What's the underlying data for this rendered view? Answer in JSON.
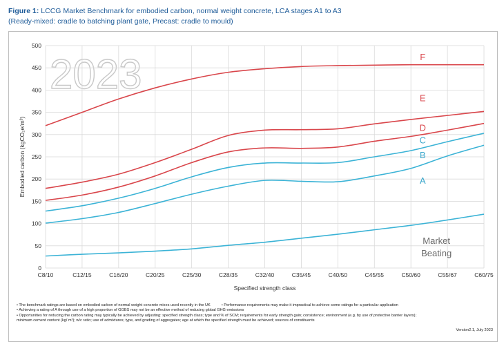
{
  "header": {
    "figure_label": "Figure 1:",
    "title": "LCCG Market Benchmark for embodied carbon, normal weight concrete, LCA stages A1 to A3",
    "subtitle": "(Ready-mixed: cradle to batching plant gate, Precast: cradle to mould)"
  },
  "chart_data": {
    "type": "line",
    "watermark": "2023",
    "xlabel": "Specified strength class",
    "ylabel": "Embodied carbon (kgCO₂e/m³)",
    "ylim": [
      0,
      500
    ],
    "yticks": [
      "0",
      "50",
      "100",
      "150",
      "200",
      "250",
      "300",
      "350",
      "400",
      "450",
      "500"
    ],
    "categories": [
      "C8/10",
      "C12/15",
      "C16/20",
      "C20/25",
      "C25/30",
      "C28/35",
      "C32/40",
      "C35/45",
      "C40/50",
      "C45/55",
      "C50/60",
      "C55/67",
      "C60/75"
    ],
    "grid": true,
    "colors": {
      "rating": "#d9464b",
      "lower": "#3bb3d6",
      "label_rating": "#d9464b",
      "label_lower": "#3aa7cc",
      "market_label": "#6a6a6a"
    },
    "series": [
      {
        "name": "F",
        "color": "#d9464b",
        "values": [
          320,
          350,
          380,
          405,
          425,
          440,
          448,
          453,
          455,
          456,
          457,
          457,
          457
        ]
      },
      {
        "name": "E",
        "color": "#d9464b",
        "values": [
          179,
          193,
          211,
          237,
          267,
          298,
          310,
          311,
          313,
          324,
          334,
          343,
          352
        ]
      },
      {
        "name": "D",
        "color": "#d9464b",
        "values": [
          152,
          164,
          182,
          207,
          237,
          261,
          270,
          269,
          272,
          285,
          296,
          310,
          325
        ]
      },
      {
        "name": "C",
        "color": "#3bb3d6",
        "values": [
          128,
          140,
          157,
          179,
          205,
          226,
          236,
          236,
          237,
          250,
          264,
          284,
          303
        ]
      },
      {
        "name": "B",
        "color": "#3bb3d6",
        "values": [
          101,
          111,
          125,
          145,
          166,
          184,
          197,
          195,
          194,
          207,
          224,
          252,
          276
        ]
      },
      {
        "name": "Market Beating",
        "color": "#3bb3d6",
        "values": [
          27,
          31,
          34,
          38,
          43,
          51,
          58,
          67,
          76,
          86,
          96,
          108,
          121
        ]
      }
    ],
    "band_labels": [
      {
        "text": "F",
        "x_category": "C50/60",
        "y": 475,
        "kind": "rating"
      },
      {
        "text": "E",
        "x_category": "C50/60",
        "y": 383,
        "kind": "rating"
      },
      {
        "text": "D",
        "x_category": "C50/60",
        "y": 316,
        "kind": "rating"
      },
      {
        "text": "C",
        "x_category": "C50/60",
        "y": 288,
        "kind": "lower"
      },
      {
        "text": "B",
        "x_category": "C50/60",
        "y": 255,
        "kind": "lower"
      },
      {
        "text": "A",
        "x_category": "C50/60",
        "y": 197,
        "kind": "lower"
      }
    ],
    "market_label": [
      "Market",
      "Beating"
    ]
  },
  "notes": {
    "n1": "• The benchmark ratings are based on embodied carbon of normal weight concrete mixes used recently in the UK",
    "n1b": "• Performance requirements may make it impractical to achieve some ratings for a particular application",
    "n2": "• Achieving a rating of A through use of a high proportion of GGBS may not be an effective method of reducing global GHG emissions",
    "n3": "• Opportunities for reducing the carbon rating may typically be achieved by adjusting: specified strength class; type and % of SCM; requirements for early strength gain; consistence; environment (e.g. by use of protective barrier layers);",
    "n4": "minimum cement content (kg/ m³); w/c ratio; use of admixtures; type, and grading of aggregates; age at which the specified strength must be achieved; sources of constituents",
    "version": "Version2.1, July 2023"
  }
}
